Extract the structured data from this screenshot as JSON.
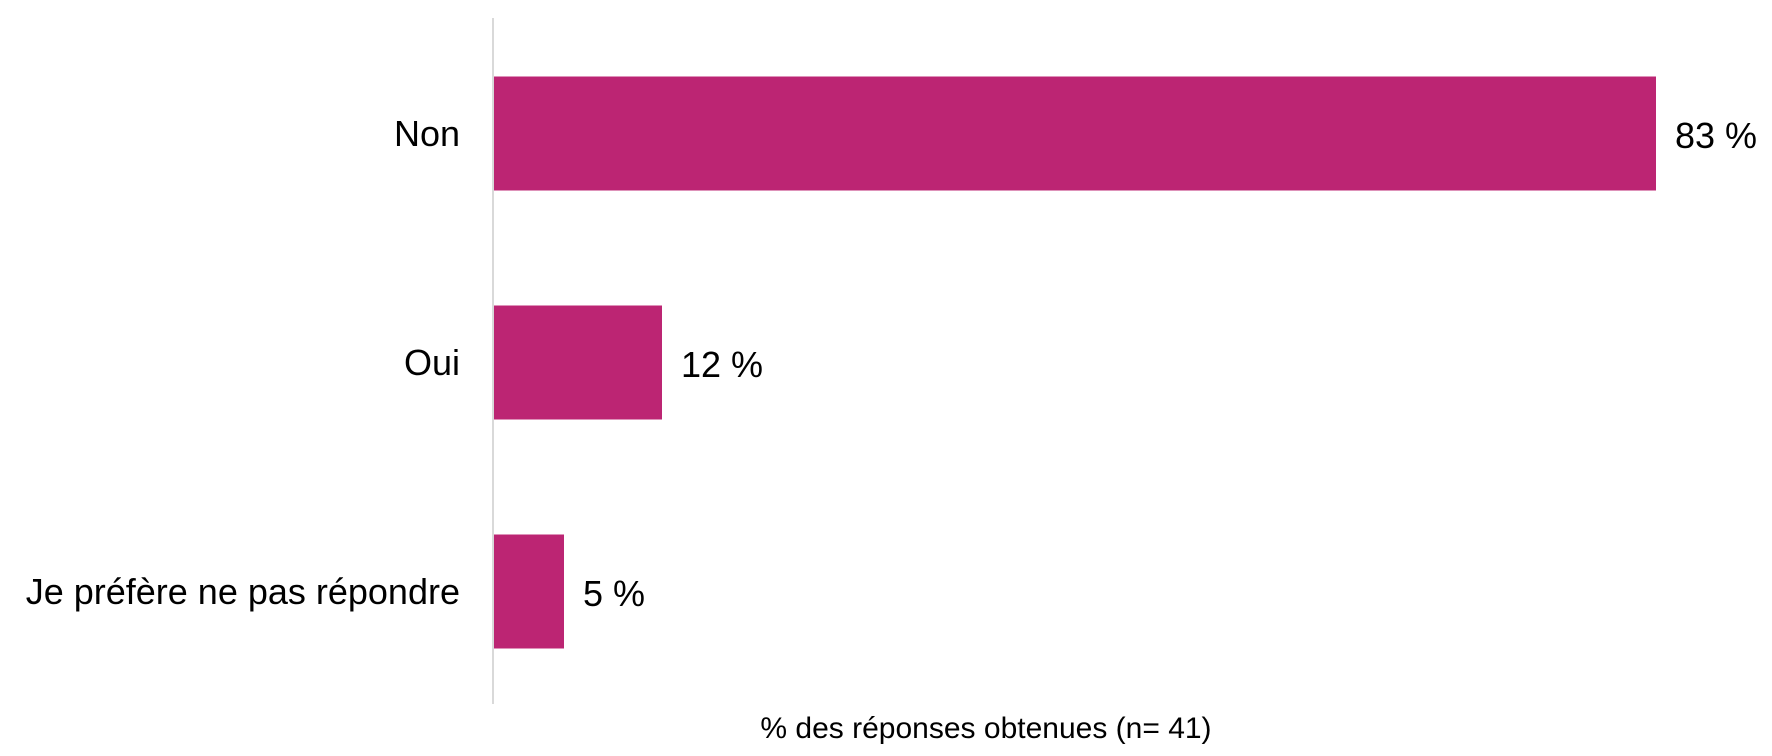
{
  "chart_data": {
    "type": "bar",
    "orientation": "horizontal",
    "categories": [
      "Non",
      "Oui",
      "Je préfère ne pas répondre"
    ],
    "values": [
      83,
      12,
      5
    ],
    "value_labels": [
      "83 %",
      "12 %",
      "5 %"
    ],
    "xlabel": "% des réponses obtenues (n= 41)",
    "ylabel": "",
    "xlim": [
      0,
      83
    ],
    "grid": false,
    "legend": "none",
    "bar_color": "#bc2573",
    "axis_color": "#d9d9d9"
  }
}
